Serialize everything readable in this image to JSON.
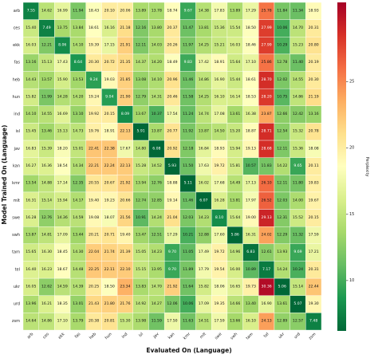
{
  "chart_data": {
    "type": "heatmap",
    "xlabel": "Evaluated On (Language)",
    "ylabel": "Model Trained On (Language)",
    "colorbar_label": "Perplexity",
    "colorbar_ticks": [
      10,
      15,
      20,
      25
    ],
    "colorbar_range": [
      6.2,
      31.0
    ],
    "colormap": [
      "#006837",
      "#1a9850",
      "#66bd63",
      "#a6d96a",
      "#d9ef8b",
      "#ffffbf",
      "#fee08b",
      "#fdae61",
      "#f46d43",
      "#d73027",
      "#a50026"
    ],
    "languages": [
      "arb",
      "ces",
      "ekk",
      "fas",
      "heb",
      "hun",
      "ind",
      "isl",
      "jav",
      "kan",
      "kmr",
      "mlt",
      "swe",
      "swh",
      "tam",
      "tel",
      "ukr",
      "urd",
      "zsm"
    ],
    "values": [
      [
        7.55,
        14.62,
        16.99,
        11.94,
        18.43,
        20.1,
        20.06,
        13.89,
        13.78,
        18.74,
        9.67,
        14.38,
        17.83,
        13.89,
        17.29,
        25.78,
        11.84,
        11.34,
        18.93
      ],
      [
        15.4,
        7.49,
        13.75,
        13.84,
        18.61,
        16.16,
        21.18,
        12.16,
        13.8,
        20.37,
        11.47,
        13.81,
        15.36,
        15.54,
        18.5,
        27.99,
        10.06,
        14.7,
        20.31
      ],
      [
        16.03,
        12.21,
        8.06,
        14.1,
        19.39,
        17.15,
        21.91,
        12.11,
        14.03,
        20.26,
        11.97,
        14.25,
        15.21,
        16.03,
        18.46,
        27.99,
        10.29,
        15.23,
        20.8
      ],
      [
        13.16,
        15.13,
        17.43,
        8.64,
        20.3,
        20.72,
        21.35,
        14.37,
        14.2,
        18.49,
        9.83,
        17.42,
        18.91,
        15.64,
        17.1,
        25.86,
        12.78,
        11.4,
        20.19
      ],
      [
        14.43,
        13.57,
        15.9,
        13.53,
        9.24,
        19.03,
        21.85,
        13.08,
        14.1,
        20.96,
        11.46,
        14.86,
        16.9,
        15.44,
        18.61,
        28.7,
        12.02,
        14.55,
        20.3
      ],
      [
        15.82,
        11.99,
        14.28,
        14.2,
        19.24,
        9.04,
        21.9,
        12.79,
        14.31,
        20.46,
        11.58,
        14.25,
        16.1,
        16.14,
        18.53,
        28.2,
        10.75,
        14.86,
        21.19
      ],
      [
        14.1,
        14.55,
        16.69,
        13.1,
        19.92,
        20.15,
        8.09,
        13.67,
        10.37,
        17.54,
        11.24,
        14.74,
        17.08,
        13.61,
        16.38,
        23.87,
        12.66,
        12.42,
        13.16
      ],
      [
        15.45,
        13.46,
        15.13,
        14.73,
        19.76,
        18.91,
        22.13,
        5.91,
        13.87,
        20.77,
        11.92,
        13.87,
        14.5,
        15.2,
        18.87,
        28.71,
        12.54,
        15.32,
        20.78
      ],
      [
        16.83,
        15.39,
        18.2,
        15.01,
        22.41,
        22.38,
        17.67,
        14.8,
        6.08,
        20.92,
        12.18,
        16.84,
        18.93,
        15.94,
        19.13,
        28.68,
        12.11,
        15.36,
        18.08
      ],
      [
        16.27,
        16.36,
        18.54,
        14.34,
        22.21,
        22.24,
        22.13,
        15.28,
        14.52,
        5.93,
        11.5,
        17.63,
        19.72,
        15.81,
        10.57,
        11.83,
        14.22,
        9.65,
        20.11
      ],
      [
        13.54,
        14.88,
        17.14,
        12.35,
        20.55,
        20.67,
        21.92,
        13.94,
        12.76,
        18.88,
        5.11,
        16.02,
        17.68,
        14.49,
        17.13,
        26.1,
        12.11,
        11.8,
        19.83
      ],
      [
        16.31,
        15.14,
        15.94,
        14.17,
        19.4,
        19.23,
        20.66,
        12.74,
        12.85,
        19.14,
        11.46,
        6.07,
        16.28,
        13.81,
        17.97,
        26.52,
        12.03,
        14.0,
        19.67
      ],
      [
        16.28,
        12.76,
        14.36,
        14.59,
        19.08,
        18.07,
        21.56,
        10.91,
        14.24,
        21.04,
        12.03,
        14.23,
        8.1,
        15.64,
        19.0,
        29.13,
        12.31,
        15.52,
        20.15
      ],
      [
        13.87,
        14.81,
        17.09,
        13.44,
        20.21,
        20.71,
        19.4,
        13.47,
        12.51,
        17.29,
        10.21,
        12.88,
        17.6,
        5.86,
        16.31,
        24.02,
        12.29,
        11.32,
        17.59
      ],
      [
        15.65,
        16.3,
        18.45,
        14.3,
        22.04,
        21.74,
        21.39,
        15.05,
        14.23,
        9.7,
        11.05,
        17.49,
        19.72,
        14.96,
        6.83,
        12.61,
        13.93,
        9.69,
        17.21
      ],
      [
        16.4,
        16.23,
        18.67,
        14.48,
        22.25,
        22.11,
        22.1,
        15.15,
        13.95,
        9.7,
        11.89,
        17.79,
        19.54,
        16.0,
        10.89,
        7.17,
        14.24,
        10.24,
        20.31
      ],
      [
        16.05,
        12.62,
        14.59,
        14.39,
        20.25,
        18.5,
        23.34,
        13.83,
        14.7,
        21.92,
        11.64,
        15.82,
        18.06,
        16.65,
        19.73,
        30.36,
        5.06,
        15.14,
        22.44
      ],
      [
        13.96,
        16.21,
        18.35,
        13.01,
        21.43,
        21.8,
        21.76,
        14.92,
        14.27,
        12.06,
        10.06,
        17.09,
        19.35,
        14.66,
        13.4,
        16.9,
        13.61,
        5.07,
        19.3
      ],
      [
        14.64,
        14.86,
        17.1,
        13.79,
        20.38,
        20.81,
        15.3,
        13.98,
        11.59,
        17.5,
        11.63,
        14.51,
        17.59,
        13.66,
        16.1,
        24.13,
        12.89,
        12.57,
        7.48
      ]
    ]
  }
}
